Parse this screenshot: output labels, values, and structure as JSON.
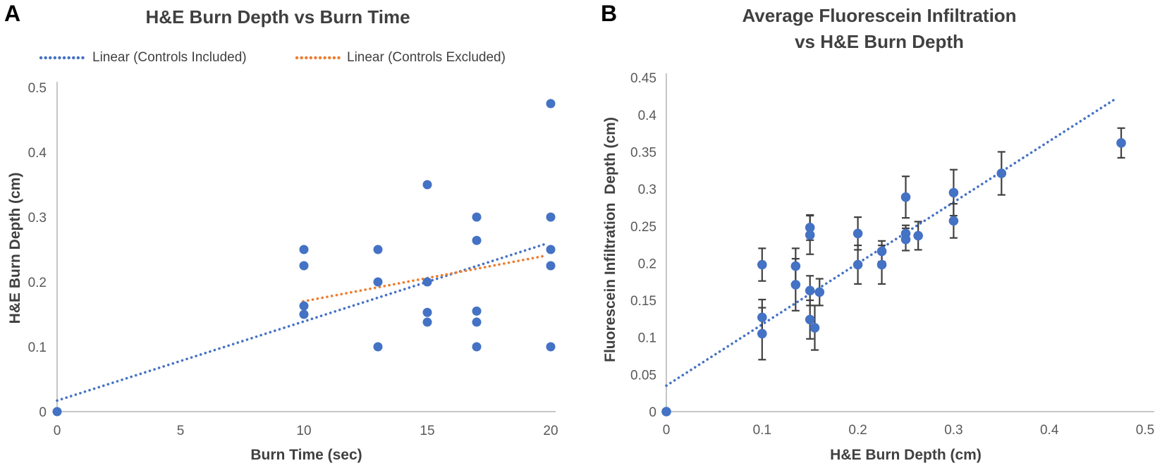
{
  "figure": {
    "panel_a": "A",
    "panel_b": "B"
  },
  "styles": {
    "point_blue": "#4472C4",
    "trend_orange": "#ED7D31",
    "axis_line": "#BFBFBF",
    "tick_text": "#595959",
    "title_text": "#404040",
    "error_bar": "#404040"
  },
  "chart_data": [
    {
      "id": "A",
      "type": "scatter",
      "title": "H&E Burn Depth vs Burn Time",
      "xlabel": "Burn Time (sec)",
      "ylabel": "H&E Burn Depth (cm)",
      "xlim": [
        0,
        20
      ],
      "ylim": [
        0,
        0.5
      ],
      "grid": false,
      "legend_position": "top",
      "xticks": [
        0,
        5,
        10,
        15,
        20
      ],
      "xtick_labels": [
        "0",
        "5",
        "10",
        "15",
        "20"
      ],
      "yticks": [
        0,
        0.1,
        0.2,
        0.3,
        0.4,
        0.5
      ],
      "ytick_labels": [
        "0",
        "0.1",
        "0.2",
        "0.3",
        "0.4",
        "0.5"
      ],
      "point_color": "#4472C4",
      "points": [
        [
          0,
          0
        ],
        [
          10,
          0.25
        ],
        [
          10,
          0.225
        ],
        [
          10,
          0.163
        ],
        [
          10,
          0.15
        ],
        [
          13,
          0.25
        ],
        [
          13,
          0.2
        ],
        [
          13,
          0.1
        ],
        [
          15,
          0.35
        ],
        [
          15,
          0.2
        ],
        [
          15,
          0.153
        ],
        [
          15,
          0.138
        ],
        [
          17,
          0.3
        ],
        [
          17,
          0.264
        ],
        [
          17,
          0.155
        ],
        [
          17,
          0.138
        ],
        [
          17,
          0.1
        ],
        [
          20,
          0.475
        ],
        [
          20,
          0.3
        ],
        [
          20,
          0.25
        ],
        [
          20,
          0.225
        ],
        [
          20,
          0.1
        ]
      ],
      "trendlines": [
        {
          "label": "Linear (Controls Included)",
          "color": "#4472C4",
          "start": [
            0,
            0.017
          ],
          "end": [
            19.74,
            0.258
          ]
        },
        {
          "label": "Linear (Controls Excluded)",
          "color": "#ED7D31",
          "start": [
            9.97,
            0.17
          ],
          "end": [
            19.74,
            0.24
          ]
        }
      ]
    },
    {
      "id": "B",
      "type": "scatter",
      "title": "Average Fluorescein Infiltration vs H&E Burn Depth",
      "title_lines": [
        "Average Fluorescein Infiltration",
        "vs H&E Burn Depth"
      ],
      "xlabel": "H&E Burn Depth (cm)",
      "ylabel": "Fluorescein Infiltration  Depth (cm)",
      "xlim": [
        0,
        0.5
      ],
      "ylim": [
        0,
        0.45
      ],
      "grid": false,
      "xticks": [
        0,
        0.1,
        0.2,
        0.3,
        0.4,
        0.5
      ],
      "xtick_labels": [
        "0",
        "0.1",
        "0.2",
        "0.3",
        "0.4",
        "0.5"
      ],
      "yticks": [
        0,
        0.05,
        0.1,
        0.15,
        0.2,
        0.25,
        0.3,
        0.35,
        0.4,
        0.45
      ],
      "ytick_labels": [
        "0",
        "0.05",
        "0.1",
        "0.15",
        "0.2",
        "0.25",
        "0.3",
        "0.35",
        "0.4",
        "0.45"
      ],
      "point_color": "#4472C4",
      "points": [
        [
          0,
          0,
          0
        ],
        [
          0.1,
          0.198,
          0.022
        ],
        [
          0.1,
          0.127,
          0.024
        ],
        [
          0.1,
          0.105,
          0.035
        ],
        [
          0.135,
          0.196,
          0.024
        ],
        [
          0.135,
          0.171,
          0.035
        ],
        [
          0.15,
          0.248,
          0.017
        ],
        [
          0.15,
          0.238,
          0.026
        ],
        [
          0.15,
          0.163,
          0.02
        ],
        [
          0.16,
          0.161,
          0.018
        ],
        [
          0.15,
          0.124,
          0.026
        ],
        [
          0.155,
          0.113,
          0.03
        ],
        [
          0.2,
          0.24,
          0.022
        ],
        [
          0.2,
          0.198,
          0.026
        ],
        [
          0.225,
          0.216,
          0.014
        ],
        [
          0.225,
          0.198,
          0.026
        ],
        [
          0.25,
          0.289,
          0.028
        ],
        [
          0.25,
          0.24,
          0.011
        ],
        [
          0.25,
          0.232,
          0.015
        ],
        [
          0.263,
          0.237,
          0.019
        ],
        [
          0.3,
          0.295,
          0.031
        ],
        [
          0.3,
          0.257,
          0.023
        ],
        [
          0.35,
          0.321,
          0.029
        ],
        [
          0.475,
          0.362,
          0.02
        ]
      ],
      "trendlines": [
        {
          "label": "",
          "color": "#4472C4",
          "start": [
            0,
            0.035
          ],
          "end": [
            0.471,
            0.423
          ]
        }
      ]
    }
  ]
}
